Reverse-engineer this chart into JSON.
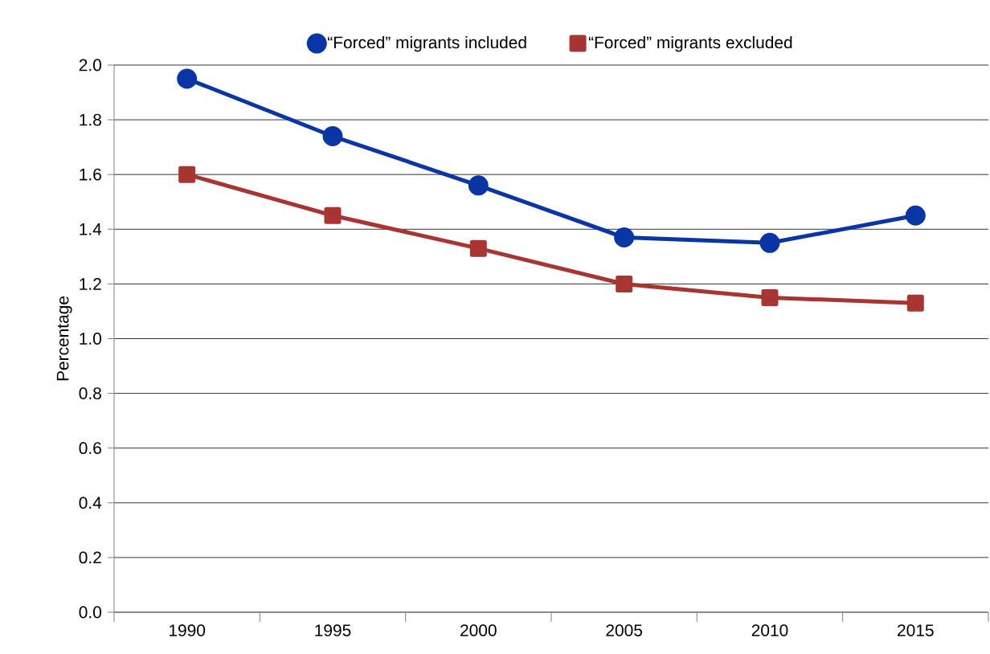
{
  "chart_data": {
    "type": "line",
    "ylabel": "Percentage",
    "categories": [
      "1990",
      "1995",
      "2000",
      "2005",
      "2010",
      "2015"
    ],
    "series": [
      {
        "name": "“Forced” migrants included",
        "color": "#0a35a5",
        "marker": "circle",
        "values": [
          1.95,
          1.74,
          1.56,
          1.37,
          1.35,
          1.45
        ]
      },
      {
        "name": "“Forced” migrants excluded",
        "color": "#a83532",
        "marker": "square",
        "values": [
          1.6,
          1.45,
          1.33,
          1.2,
          1.15,
          1.13
        ]
      }
    ],
    "ylim": [
      0,
      2
    ],
    "yticks": [
      {
        "value": 0,
        "label": "0.0"
      },
      {
        "value": 0.2,
        "label": "0.2"
      },
      {
        "value": 0.4,
        "label": "0.4"
      },
      {
        "value": 0.6,
        "label": "0.6"
      },
      {
        "value": 0.8,
        "label": "0.8"
      },
      {
        "value": 1,
        "label": "1.0"
      },
      {
        "value": 1.2,
        "label": "1.2"
      },
      {
        "value": 1.4,
        "label": "1.4"
      },
      {
        "value": 1.6,
        "label": "1.6"
      },
      {
        "value": 1.8,
        "label": "1.8"
      },
      {
        "value": 2,
        "label": "2.0"
      }
    ],
    "grid": "y",
    "legend": "top",
    "line_style": "solid"
  }
}
